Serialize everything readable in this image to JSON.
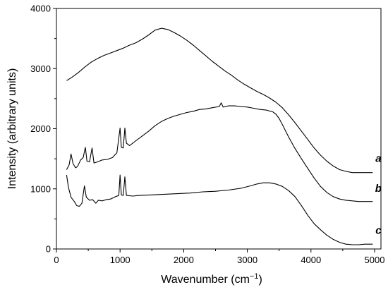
{
  "chart_data": {
    "type": "line",
    "xlabel": "Wavenumber (cm",
    "xlabel_sup": "−1",
    "xlabel_suffix": ")",
    "ylabel": "Intensity (arbitrary units)",
    "xlim": [
      0,
      5100
    ],
    "ylim": [
      0,
      4000
    ],
    "x_ticks": [
      0,
      1000,
      2000,
      3000,
      4000,
      5000
    ],
    "y_ticks": [
      0,
      1000,
      2000,
      3000,
      4000
    ],
    "grid": false,
    "line_color": "#000000",
    "series": [
      {
        "name": "a",
        "points": [
          [
            160,
            2800
          ],
          [
            250,
            2860
          ],
          [
            350,
            2940
          ],
          [
            450,
            3030
          ],
          [
            550,
            3110
          ],
          [
            650,
            3170
          ],
          [
            750,
            3220
          ],
          [
            850,
            3260
          ],
          [
            950,
            3300
          ],
          [
            1050,
            3340
          ],
          [
            1150,
            3390
          ],
          [
            1250,
            3430
          ],
          [
            1350,
            3490
          ],
          [
            1450,
            3560
          ],
          [
            1550,
            3640
          ],
          [
            1650,
            3670
          ],
          [
            1750,
            3650
          ],
          [
            1850,
            3600
          ],
          [
            1950,
            3540
          ],
          [
            2050,
            3470
          ],
          [
            2150,
            3390
          ],
          [
            2250,
            3300
          ],
          [
            2350,
            3210
          ],
          [
            2450,
            3120
          ],
          [
            2550,
            3040
          ],
          [
            2650,
            2960
          ],
          [
            2750,
            2890
          ],
          [
            2850,
            2810
          ],
          [
            2950,
            2740
          ],
          [
            3050,
            2680
          ],
          [
            3150,
            2620
          ],
          [
            3250,
            2570
          ],
          [
            3350,
            2510
          ],
          [
            3450,
            2440
          ],
          [
            3550,
            2350
          ],
          [
            3650,
            2230
          ],
          [
            3750,
            2100
          ],
          [
            3850,
            1960
          ],
          [
            3950,
            1820
          ],
          [
            4050,
            1680
          ],
          [
            4150,
            1560
          ],
          [
            4250,
            1460
          ],
          [
            4350,
            1380
          ],
          [
            4450,
            1320
          ],
          [
            4550,
            1290
          ],
          [
            4650,
            1270
          ],
          [
            4750,
            1270
          ],
          [
            4850,
            1270
          ],
          [
            4970,
            1270
          ]
        ],
        "label_position": [
          5060,
          1450
        ]
      },
      {
        "name": "b",
        "points": [
          [
            160,
            1320
          ],
          [
            200,
            1400
          ],
          [
            230,
            1580
          ],
          [
            260,
            1420
          ],
          [
            300,
            1350
          ],
          [
            330,
            1370
          ],
          [
            380,
            1480
          ],
          [
            420,
            1520
          ],
          [
            455,
            1690
          ],
          [
            480,
            1460
          ],
          [
            520,
            1450
          ],
          [
            560,
            1680
          ],
          [
            590,
            1430
          ],
          [
            650,
            1450
          ],
          [
            720,
            1480
          ],
          [
            800,
            1490
          ],
          [
            880,
            1520
          ],
          [
            950,
            1600
          ],
          [
            1000,
            2010
          ],
          [
            1020,
            1690
          ],
          [
            1050,
            1680
          ],
          [
            1075,
            2010
          ],
          [
            1100,
            1760
          ],
          [
            1150,
            1720
          ],
          [
            1250,
            1800
          ],
          [
            1350,
            1880
          ],
          [
            1450,
            1960
          ],
          [
            1550,
            2050
          ],
          [
            1650,
            2120
          ],
          [
            1750,
            2170
          ],
          [
            1850,
            2210
          ],
          [
            1950,
            2240
          ],
          [
            2050,
            2270
          ],
          [
            2150,
            2290
          ],
          [
            2250,
            2320
          ],
          [
            2350,
            2330
          ],
          [
            2450,
            2350
          ],
          [
            2560,
            2370
          ],
          [
            2590,
            2430
          ],
          [
            2620,
            2360
          ],
          [
            2700,
            2380
          ],
          [
            2800,
            2380
          ],
          [
            2900,
            2370
          ],
          [
            3000,
            2360
          ],
          [
            3100,
            2340
          ],
          [
            3200,
            2320
          ],
          [
            3300,
            2310
          ],
          [
            3400,
            2280
          ],
          [
            3450,
            2240
          ],
          [
            3500,
            2170
          ],
          [
            3550,
            2070
          ],
          [
            3650,
            1860
          ],
          [
            3750,
            1670
          ],
          [
            3850,
            1500
          ],
          [
            3950,
            1340
          ],
          [
            4050,
            1180
          ],
          [
            4150,
            1040
          ],
          [
            4250,
            940
          ],
          [
            4350,
            870
          ],
          [
            4450,
            830
          ],
          [
            4550,
            810
          ],
          [
            4650,
            800
          ],
          [
            4750,
            790
          ],
          [
            4850,
            790
          ],
          [
            4970,
            790
          ]
        ],
        "label_position": [
          5060,
          950
        ]
      },
      {
        "name": "c",
        "points": [
          [
            160,
            1230
          ],
          [
            190,
            1020
          ],
          [
            230,
            860
          ],
          [
            280,
            790
          ],
          [
            320,
            720
          ],
          [
            360,
            710
          ],
          [
            400,
            760
          ],
          [
            440,
            1050
          ],
          [
            470,
            860
          ],
          [
            520,
            810
          ],
          [
            570,
            820
          ],
          [
            620,
            760
          ],
          [
            660,
            810
          ],
          [
            720,
            800
          ],
          [
            780,
            820
          ],
          [
            850,
            830
          ],
          [
            930,
            870
          ],
          [
            980,
            890
          ],
          [
            1000,
            1230
          ],
          [
            1020,
            900
          ],
          [
            1050,
            890
          ],
          [
            1075,
            1200
          ],
          [
            1100,
            890
          ],
          [
            1200,
            880
          ],
          [
            1300,
            890
          ],
          [
            1500,
            900
          ],
          [
            1700,
            910
          ],
          [
            1900,
            920
          ],
          [
            2100,
            930
          ],
          [
            2300,
            950
          ],
          [
            2500,
            960
          ],
          [
            2700,
            980
          ],
          [
            2900,
            1010
          ],
          [
            3050,
            1050
          ],
          [
            3150,
            1080
          ],
          [
            3250,
            1100
          ],
          [
            3350,
            1100
          ],
          [
            3450,
            1080
          ],
          [
            3550,
            1040
          ],
          [
            3650,
            970
          ],
          [
            3750,
            870
          ],
          [
            3850,
            720
          ],
          [
            3950,
            560
          ],
          [
            4050,
            420
          ],
          [
            4150,
            320
          ],
          [
            4250,
            230
          ],
          [
            4350,
            160
          ],
          [
            4450,
            110
          ],
          [
            4550,
            80
          ],
          [
            4650,
            70
          ],
          [
            4750,
            70
          ],
          [
            4850,
            80
          ],
          [
            4970,
            80
          ]
        ],
        "label_position": [
          5060,
          250
        ]
      }
    ]
  }
}
